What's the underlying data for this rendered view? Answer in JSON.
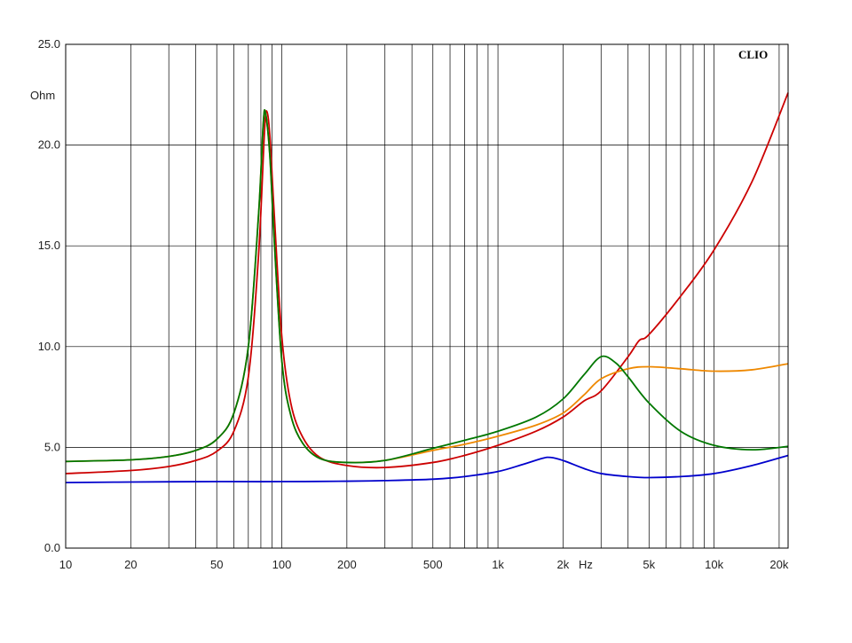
{
  "chart_data": {
    "type": "line",
    "brand": "CLIO",
    "x_scale": "log",
    "xlim": [
      10,
      22000
    ],
    "ylim": [
      0,
      25
    ],
    "grid": true,
    "x_unit": "Hz",
    "y_unit": "Ohm",
    "x_ticks": [
      {
        "value": 10,
        "label": "10"
      },
      {
        "value": 20,
        "label": "20"
      },
      {
        "value": 50,
        "label": "50"
      },
      {
        "value": 100,
        "label": "100"
      },
      {
        "value": 200,
        "label": "200"
      },
      {
        "value": 500,
        "label": "500"
      },
      {
        "value": 1000,
        "label": "1k"
      },
      {
        "value": 2000,
        "label": "2k"
      },
      {
        "value": 5000,
        "label": "5k"
      },
      {
        "value": 10000,
        "label": "10k"
      },
      {
        "value": 20000,
        "label": "20k"
      }
    ],
    "y_ticks": [
      {
        "value": 0,
        "label": "0.0"
      },
      {
        "value": 5,
        "label": "5.0"
      },
      {
        "value": 10,
        "label": "10.0"
      },
      {
        "value": 15,
        "label": "15.0"
      },
      {
        "value": 20,
        "label": "20.0"
      },
      {
        "value": 25,
        "label": "25.0"
      }
    ],
    "series": [
      {
        "color": "#0000cc",
        "points": [
          [
            10,
            3.25
          ],
          [
            20,
            3.28
          ],
          [
            50,
            3.3
          ],
          [
            100,
            3.3
          ],
          [
            200,
            3.32
          ],
          [
            300,
            3.35
          ],
          [
            500,
            3.42
          ],
          [
            700,
            3.55
          ],
          [
            1000,
            3.8
          ],
          [
            1300,
            4.15
          ],
          [
            1600,
            4.45
          ],
          [
            1750,
            4.5
          ],
          [
            2000,
            4.35
          ],
          [
            2500,
            3.95
          ],
          [
            3000,
            3.7
          ],
          [
            4000,
            3.55
          ],
          [
            5000,
            3.5
          ],
          [
            7000,
            3.55
          ],
          [
            10000,
            3.7
          ],
          [
            15000,
            4.1
          ],
          [
            22000,
            4.6
          ]
        ]
      },
      {
        "color": "#cc0000",
        "points": [
          [
            10,
            3.7
          ],
          [
            20,
            3.85
          ],
          [
            30,
            4.05
          ],
          [
            40,
            4.35
          ],
          [
            50,
            4.8
          ],
          [
            60,
            5.8
          ],
          [
            70,
            8.5
          ],
          [
            78,
            14.5
          ],
          [
            83,
            20.5
          ],
          [
            85,
            21.7
          ],
          [
            88,
            20.5
          ],
          [
            92,
            16.8
          ],
          [
            100,
            10.5
          ],
          [
            110,
            7.2
          ],
          [
            125,
            5.5
          ],
          [
            150,
            4.5
          ],
          [
            200,
            4.1
          ],
          [
            300,
            4.0
          ],
          [
            500,
            4.25
          ],
          [
            700,
            4.6
          ],
          [
            1000,
            5.1
          ],
          [
            1500,
            5.8
          ],
          [
            2000,
            6.5
          ],
          [
            2500,
            7.3
          ],
          [
            3000,
            7.8
          ],
          [
            4000,
            9.5
          ],
          [
            4500,
            10.3
          ],
          [
            5000,
            10.6
          ],
          [
            7000,
            12.5
          ],
          [
            10000,
            14.8
          ],
          [
            15000,
            18.2
          ],
          [
            22000,
            22.6
          ]
        ]
      },
      {
        "color": "#ee8800",
        "points": [
          [
            10,
            4.3
          ],
          [
            20,
            4.38
          ],
          [
            30,
            4.55
          ],
          [
            40,
            4.85
          ],
          [
            50,
            5.4
          ],
          [
            60,
            6.7
          ],
          [
            70,
            10.0
          ],
          [
            78,
            16.5
          ],
          [
            82,
            21.0
          ],
          [
            84,
            21.6
          ],
          [
            88,
            19.5
          ],
          [
            92,
            15.5
          ],
          [
            100,
            9.3
          ],
          [
            110,
            6.6
          ],
          [
            125,
            5.2
          ],
          [
            150,
            4.45
          ],
          [
            200,
            4.25
          ],
          [
            300,
            4.35
          ],
          [
            500,
            4.85
          ],
          [
            700,
            5.15
          ],
          [
            1000,
            5.55
          ],
          [
            1500,
            6.1
          ],
          [
            2000,
            6.7
          ],
          [
            2500,
            7.6
          ],
          [
            3000,
            8.4
          ],
          [
            4000,
            8.9
          ],
          [
            5000,
            9.0
          ],
          [
            7000,
            8.9
          ],
          [
            10000,
            8.78
          ],
          [
            15000,
            8.85
          ],
          [
            22000,
            9.15
          ]
        ]
      },
      {
        "color": "#007700",
        "points": [
          [
            10,
            4.3
          ],
          [
            20,
            4.38
          ],
          [
            30,
            4.55
          ],
          [
            40,
            4.85
          ],
          [
            50,
            5.4
          ],
          [
            60,
            6.7
          ],
          [
            70,
            10.0
          ],
          [
            78,
            16.5
          ],
          [
            82,
            21.0
          ],
          [
            84,
            21.6
          ],
          [
            88,
            19.5
          ],
          [
            92,
            15.5
          ],
          [
            100,
            9.3
          ],
          [
            110,
            6.6
          ],
          [
            125,
            5.2
          ],
          [
            150,
            4.45
          ],
          [
            200,
            4.25
          ],
          [
            300,
            4.35
          ],
          [
            500,
            4.95
          ],
          [
            700,
            5.35
          ],
          [
            1000,
            5.8
          ],
          [
            1500,
            6.5
          ],
          [
            2000,
            7.4
          ],
          [
            2500,
            8.6
          ],
          [
            3000,
            9.5
          ],
          [
            3500,
            9.2
          ],
          [
            4000,
            8.5
          ],
          [
            5000,
            7.2
          ],
          [
            7000,
            5.8
          ],
          [
            10000,
            5.1
          ],
          [
            15000,
            4.88
          ],
          [
            22000,
            5.05
          ]
        ]
      }
    ]
  }
}
